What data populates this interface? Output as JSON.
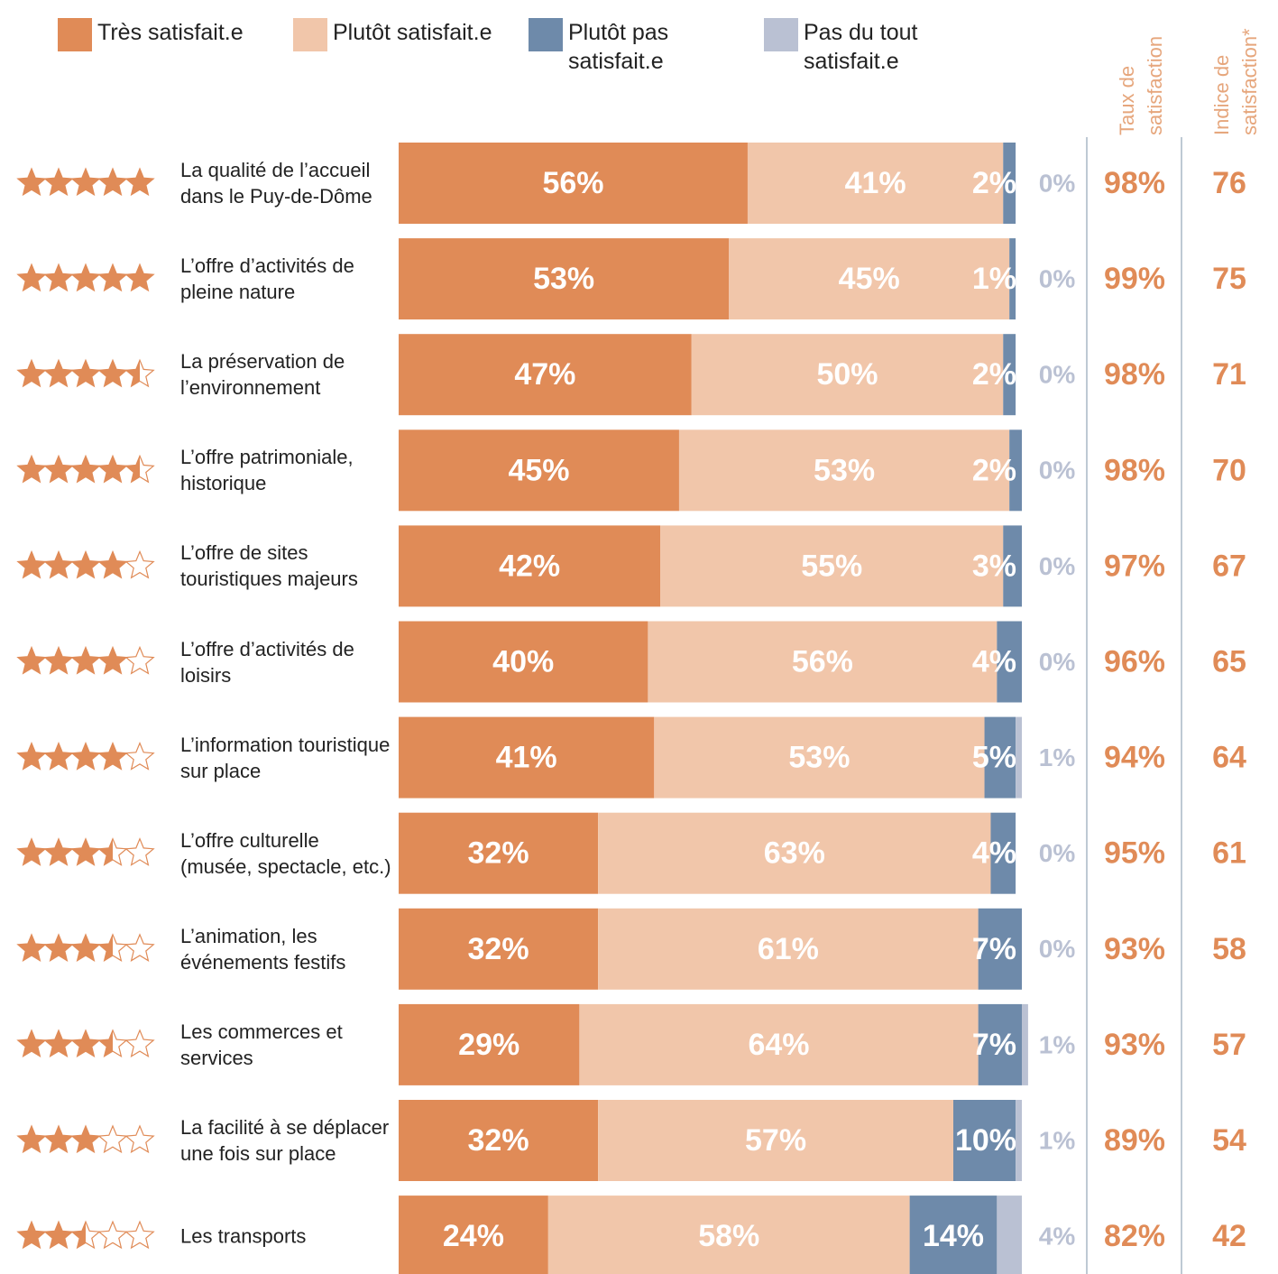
{
  "chart_data": {
    "type": "stacked-bar",
    "orientation": "horizontal",
    "xlim": [
      0,
      100
    ],
    "categories": [
      "La qualité de l’accueil dans le Puy-de-Dôme",
      "L’offre d’activités de pleine nature",
      "La préservation de l’environnement",
      "L’offre patrimoniale, historique",
      "L’offre de sites touristiques majeurs",
      "L’offre d’activités de loisirs",
      "L’information touristique sur place",
      "L’offre culturelle (musée, spectacle, etc.)",
      "L’animation, les événements festifs",
      "Les commerces et services",
      "La facilité à se déplacer une fois sur place",
      "Les transports"
    ],
    "series": [
      {
        "name": "Très satisfait.e",
        "color": "#e08b57",
        "values": [
          56,
          53,
          47,
          45,
          42,
          40,
          41,
          32,
          32,
          29,
          32,
          24
        ]
      },
      {
        "name": "Plutôt satisfait.e",
        "color": "#f1c6aa",
        "values": [
          41,
          45,
          50,
          53,
          55,
          56,
          53,
          63,
          61,
          64,
          57,
          58
        ]
      },
      {
        "name": "Plutôt pas satisfait.e",
        "color": "#6e8aaa",
        "values": [
          2,
          1,
          2,
          2,
          3,
          4,
          5,
          4,
          7,
          7,
          10,
          14
        ]
      },
      {
        "name": "Pas du tout satisfait.e",
        "color": "#bac1d3",
        "values": [
          0,
          0,
          0,
          0,
          0,
          0,
          1,
          0,
          0,
          1,
          1,
          4
        ]
      }
    ],
    "stars": [
      5,
      5,
      4.5,
      4.5,
      4,
      4,
      4,
      3.5,
      3.5,
      3.5,
      3,
      2.5
    ],
    "columns": [
      {
        "title": "Taux de satisfaction",
        "values": [
          98,
          99,
          98,
          98,
          97,
          96,
          94,
          95,
          93,
          93,
          89,
          82
        ],
        "format": "percent"
      },
      {
        "title": "Indice de satisfaction*",
        "values": [
          76,
          75,
          71,
          70,
          67,
          65,
          64,
          61,
          58,
          57,
          54,
          42
        ]
      }
    ],
    "value_labels": "percent"
  }
}
